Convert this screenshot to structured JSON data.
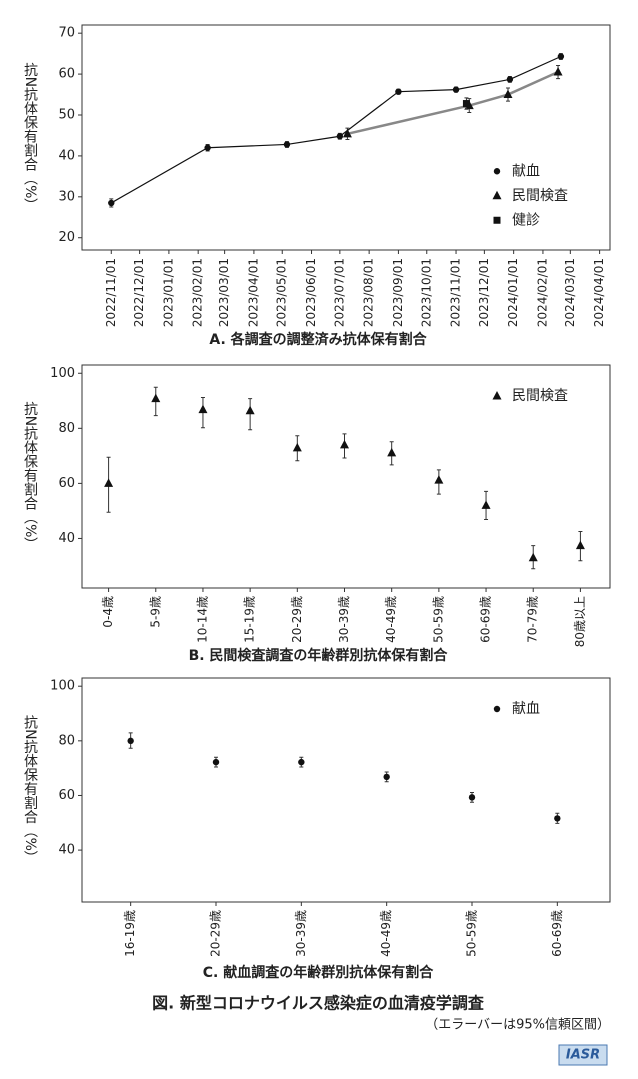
{
  "chart_data": [
    {
      "type": "line",
      "title": "A. 各調査の調整済み抗体保有割合",
      "y_label": "抗N抗体保有割合（%）",
      "xlim": [
        "2022/10/01",
        "2024/04/12"
      ],
      "xticks": [
        "2022/11/01",
        "2022/12/01",
        "2023/01/01",
        "2023/02/01",
        "2023/03/01",
        "2023/04/01",
        "2023/05/01",
        "2023/06/01",
        "2023/07/01",
        "2023/08/01",
        "2023/09/01",
        "2023/10/01",
        "2023/11/01",
        "2023/12/01",
        "2024/01/01",
        "2024/02/01",
        "2024/03/01",
        "2024/04/01"
      ],
      "ylim": [
        17,
        72
      ],
      "yticks": [
        20,
        30,
        40,
        50,
        60,
        70
      ],
      "legend": "right",
      "series": [
        {
          "name": "献血",
          "marker": "circle",
          "color": "#111111",
          "line_color": "#111111",
          "x": [
            "2022/11/01",
            "2023/02/11",
            "2023/05/06",
            "2023/07/01",
            "2023/09/01",
            "2023/11/01",
            "2023/12/28",
            "2024/02/20"
          ],
          "values": [
            28.5,
            42,
            42.8,
            44.8,
            55.7,
            56.2,
            58.7,
            64.3
          ],
          "ci_lower": [
            27.5,
            41.2,
            42.1,
            44.1,
            55.1,
            55.6,
            58.0,
            63.6
          ],
          "ci_upper": [
            29.5,
            42.8,
            43.5,
            45.5,
            56.3,
            56.8,
            59.4,
            65.0
          ]
        },
        {
          "name": "民間検査",
          "marker": "triangle",
          "color": "#111111",
          "line_color": "#888888",
          "x": [
            "2023/07/09",
            "2023/11/15",
            "2023/12/26",
            "2024/02/17"
          ],
          "values": [
            45.4,
            52.3,
            55,
            60.5
          ],
          "ci_lower": [
            44.0,
            50.6,
            53.4,
            58.9
          ],
          "ci_upper": [
            46.8,
            54.0,
            56.6,
            62.1
          ]
        },
        {
          "name": "健診",
          "marker": "square",
          "color": "#111111",
          "x": [
            "2023/11/12"
          ],
          "values": [
            52.8
          ],
          "ci_lower": [
            51.4
          ],
          "ci_upper": [
            54.2
          ]
        }
      ]
    },
    {
      "type": "errorbar",
      "title": "B. 民間検査調査の年齢群別抗体保有割合",
      "y_label": "抗N抗体保有割合（%）",
      "categories": [
        "0-4歳",
        "5-9歳",
        "10-14歳",
        "15-19歳",
        "20-29歳",
        "30-39歳",
        "40-49歳",
        "50-59歳",
        "60-69歳",
        "70-79歳",
        "80歳以上"
      ],
      "ylim": [
        22,
        103
      ],
      "yticks": [
        40,
        60,
        80,
        100
      ],
      "legend": "upper right",
      "series": [
        {
          "name": "民間検査",
          "marker": "triangle",
          "color": "#111111",
          "values": [
            60,
            90.8,
            86.8,
            86.4,
            72.9,
            74,
            71.1,
            61.2,
            52,
            33,
            37.4
          ],
          "ci_lower": [
            49.5,
            84.6,
            80.2,
            79.5,
            68.2,
            69.2,
            66.7,
            56.1,
            46.9,
            29,
            31.9
          ],
          "ci_upper": [
            69.5,
            94.9,
            91.2,
            90.8,
            77.3,
            78,
            75.1,
            64.9,
            57.1,
            37.4,
            42.5
          ]
        }
      ]
    },
    {
      "type": "errorbar",
      "title": "C. 献血調査の年齢群別抗体保有割合",
      "y_label": "抗N抗体保有割合（%）",
      "categories": [
        "16-19歳",
        "20-29歳",
        "30-39歳",
        "40-49歳",
        "50-59歳",
        "60-69歳"
      ],
      "ylim": [
        21,
        103
      ],
      "yticks": [
        40,
        60,
        80,
        100
      ],
      "legend": "upper right",
      "series": [
        {
          "name": "献血",
          "marker": "circle",
          "color": "#111111",
          "values": [
            80,
            72.2,
            72.2,
            66.8,
            59.3,
            51.6
          ],
          "ci_lower": [
            77.3,
            70.4,
            70.4,
            65,
            57.5,
            49.8
          ],
          "ci_upper": [
            82.9,
            74,
            74,
            68.6,
            61.1,
            53.5
          ]
        }
      ]
    }
  ],
  "figure_title": "図. 新型コロナウイルス感染症の血清疫学調査",
  "figure_note": "（エラーバーは95%信頼区間）",
  "logo": "IASR"
}
